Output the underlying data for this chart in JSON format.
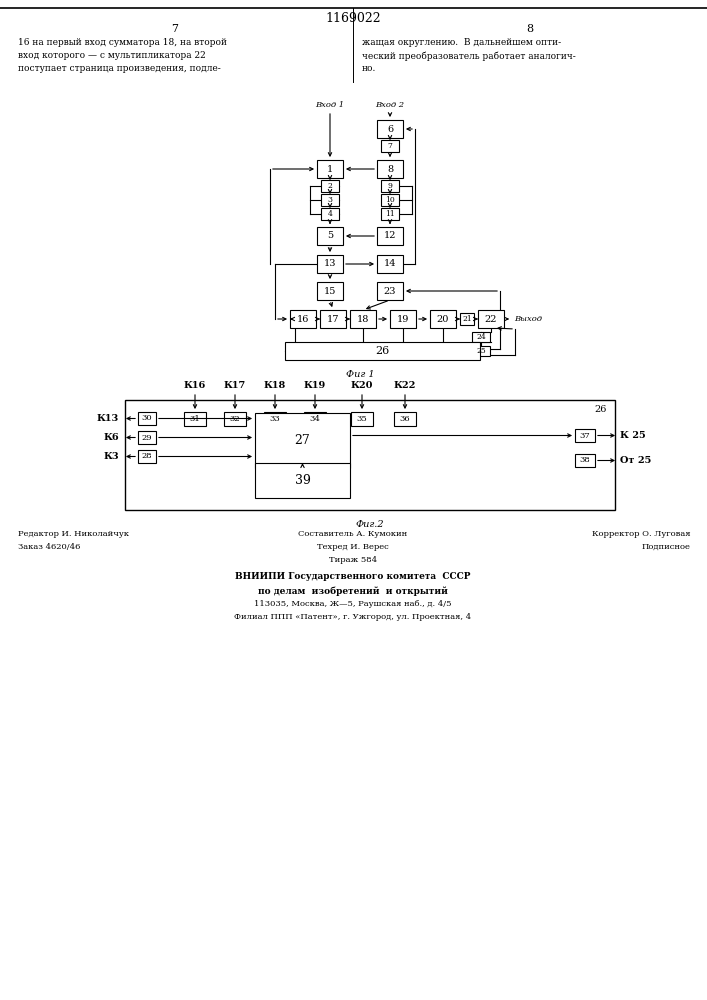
{
  "title": "1169022",
  "page_left": "7",
  "page_right": "8",
  "text_left": "16 на первый вход сумматора 18, на второй\nвход которого — с мультипликатора 22\nпоступает страница произведения, подле-",
  "text_right": "жащая округлению.  В дальнейшем опти-\nческий преобразователь работает аналогич-\nно.",
  "fig1_label": "Фиг 1",
  "fig2_label": "Фиг.2",
  "vhod1": "Вход 1",
  "vhod2": "Вход 2",
  "vyhod": "Выход",
  "k13": "К13",
  "k6": "К6",
  "k3": "К3",
  "k25": "К 25",
  "ot25": "От 25",
  "k16": "К16",
  "k17": "К17",
  "k18": "К18",
  "k19": "К19",
  "k20": "К20",
  "k22": "К22",
  "footer_left1": "Редактор И. Николайчук",
  "footer_left2": "Заказ 4620/46",
  "footer_c1": "Составитель А. Кумокин",
  "footer_c2": "Техред И. Верес",
  "footer_c3": "Тираж 584",
  "footer_r1": "Корректор О. Луговая",
  "footer_r2": "Подписное",
  "footer_vniiipi": "ВНИИПИ Государственного комитета  СССР",
  "footer_vniiipi2": "по делам  изобретений  и открытий",
  "footer_vniiipi3": "113035, Москва, Ж—5, Раушская наб., д. 4/5",
  "footer_vniiipi4": "Филиал ППП «Патент», г. Ужгород, ул. Проектная, 4",
  "bg_color": "#ffffff",
  "lc": "#000000"
}
